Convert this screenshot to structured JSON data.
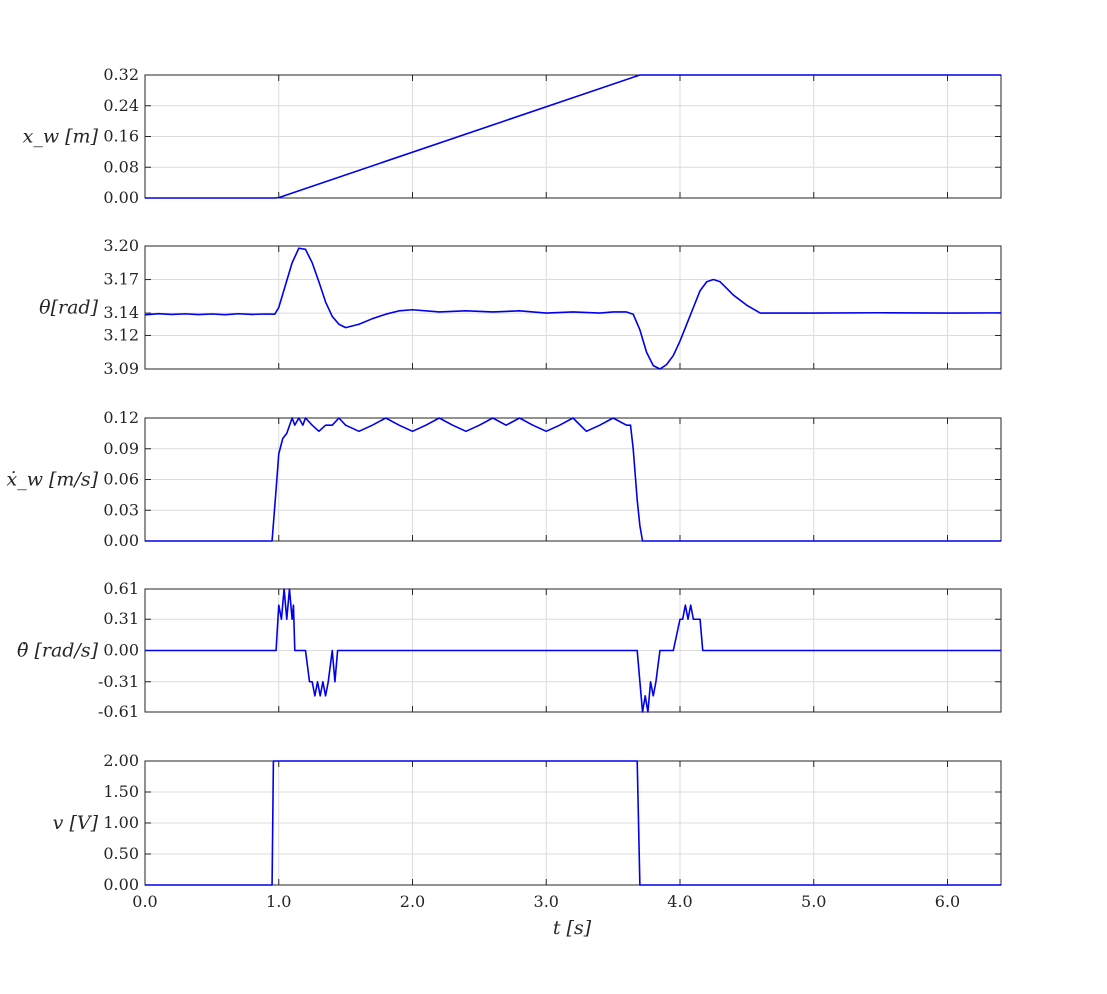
{
  "figure": {
    "xlabel": "t [s]"
  },
  "chart_data": [
    {
      "type": "line",
      "ylabel": "x_w [m]",
      "xlim": [
        0,
        6.4
      ],
      "ylim": [
        0,
        0.32
      ],
      "xticks": [
        0,
        1,
        2,
        3,
        4,
        5,
        6
      ],
      "yticks": [
        "0.00",
        "0.08",
        "0.16",
        "0.24",
        "0.32"
      ],
      "grid": true,
      "series": [
        {
          "color": "#0000ee",
          "x": [
            0,
            0.97,
            1.0,
            3.7,
            6.4
          ],
          "y": [
            0,
            0,
            0.001,
            0.32,
            0.32
          ]
        }
      ]
    },
    {
      "type": "line",
      "ylabel": "θ[rad]",
      "xlim": [
        0,
        6.4
      ],
      "ylim": [
        3.09,
        3.2
      ],
      "xticks": [
        0,
        1,
        2,
        3,
        4,
        5,
        6
      ],
      "yticks": [
        "3.09",
        "3.12",
        "3.14",
        "3.17",
        "3.20"
      ],
      "grid": true,
      "series": [
        {
          "color": "#0000ee",
          "x": [
            0,
            0.1,
            0.2,
            0.3,
            0.4,
            0.5,
            0.6,
            0.7,
            0.8,
            0.9,
            0.97,
            1.0,
            1.05,
            1.1,
            1.15,
            1.2,
            1.25,
            1.3,
            1.35,
            1.4,
            1.45,
            1.5,
            1.6,
            1.7,
            1.8,
            1.9,
            2.0,
            2.2,
            2.4,
            2.6,
            2.8,
            3.0,
            3.2,
            3.4,
            3.5,
            3.6,
            3.65,
            3.7,
            3.75,
            3.8,
            3.85,
            3.9,
            3.95,
            4.0,
            4.05,
            4.1,
            4.15,
            4.2,
            4.25,
            4.3,
            4.35,
            4.4,
            4.5,
            4.6,
            5.0,
            5.5,
            6.0,
            6.4
          ],
          "y": [
            3.1385,
            3.1395,
            3.1388,
            3.1393,
            3.1387,
            3.1392,
            3.1386,
            3.1394,
            3.1388,
            3.1392,
            3.139,
            3.145,
            3.165,
            3.185,
            3.198,
            3.197,
            3.185,
            3.168,
            3.15,
            3.137,
            3.13,
            3.127,
            3.13,
            3.135,
            3.139,
            3.142,
            3.143,
            3.141,
            3.142,
            3.141,
            3.142,
            3.14,
            3.141,
            3.14,
            3.141,
            3.141,
            3.139,
            3.125,
            3.105,
            3.093,
            3.09,
            3.094,
            3.102,
            3.115,
            3.13,
            3.145,
            3.16,
            3.168,
            3.17,
            3.168,
            3.162,
            3.156,
            3.147,
            3.14,
            3.14,
            3.1403,
            3.14,
            3.1402
          ]
        }
      ]
    },
    {
      "type": "line",
      "ylabel": "ẋ_w [m/s]",
      "xlim": [
        0,
        6.4
      ],
      "ylim": [
        0,
        0.12
      ],
      "xticks": [
        0,
        1,
        2,
        3,
        4,
        5,
        6
      ],
      "yticks": [
        "0.00",
        "0.03",
        "0.06",
        "0.09",
        "0.12"
      ],
      "grid": true,
      "series": [
        {
          "color": "#0000ee",
          "x": [
            0,
            0.95,
            0.98,
            1.0,
            1.03,
            1.06,
            1.1,
            1.12,
            1.15,
            1.18,
            1.2,
            1.25,
            1.3,
            1.35,
            1.4,
            1.45,
            1.5,
            1.6,
            1.7,
            1.8,
            1.9,
            2.0,
            2.1,
            2.2,
            2.3,
            2.4,
            2.5,
            2.6,
            2.7,
            2.8,
            2.9,
            3.0,
            3.1,
            3.2,
            3.3,
            3.4,
            3.5,
            3.6,
            3.63,
            3.65,
            3.68,
            3.7,
            3.72,
            3.75,
            4.0,
            5.0,
            6.0,
            6.4
          ],
          "y": [
            0,
            0,
            0.05,
            0.085,
            0.1,
            0.105,
            0.12,
            0.113,
            0.12,
            0.113,
            0.12,
            0.113,
            0.107,
            0.113,
            0.113,
            0.12,
            0.113,
            0.107,
            0.113,
            0.12,
            0.113,
            0.107,
            0.113,
            0.12,
            0.113,
            0.107,
            0.113,
            0.12,
            0.113,
            0.12,
            0.113,
            0.107,
            0.113,
            0.12,
            0.107,
            0.113,
            0.12,
            0.113,
            0.113,
            0.09,
            0.04,
            0.015,
            0.0,
            0.0,
            0,
            0,
            0,
            0
          ]
        }
      ]
    },
    {
      "type": "line",
      "ylabel": "θ̇ [rad/s]",
      "xlim": [
        0,
        6.4
      ],
      "ylim": [
        -0.61,
        0.61
      ],
      "xticks": [
        0,
        1,
        2,
        3,
        4,
        5,
        6
      ],
      "yticks": [
        "-0.61",
        "-0.31",
        "0.00",
        "0.31",
        "0.61"
      ],
      "grid": true,
      "series": [
        {
          "color": "#0000ee",
          "x": [
            0,
            0.98,
            1.0,
            1.02,
            1.04,
            1.06,
            1.08,
            1.1,
            1.11,
            1.12,
            1.15,
            1.2,
            1.23,
            1.25,
            1.27,
            1.29,
            1.31,
            1.33,
            1.35,
            1.37,
            1.4,
            1.42,
            1.44,
            1.5,
            2.0,
            3.0,
            3.68,
            3.7,
            3.72,
            3.74,
            3.76,
            3.78,
            3.8,
            3.82,
            3.85,
            3.9,
            3.95,
            4.0,
            4.02,
            4.04,
            4.06,
            4.08,
            4.1,
            4.15,
            4.17,
            4.2,
            4.5,
            5.0,
            6.0,
            6.4
          ],
          "y": [
            0,
            0,
            0.45,
            0.31,
            0.61,
            0.31,
            0.61,
            0.31,
            0.45,
            0,
            0,
            0,
            -0.31,
            -0.31,
            -0.45,
            -0.31,
            -0.45,
            -0.31,
            -0.45,
            -0.31,
            0,
            -0.31,
            0,
            0,
            0,
            0,
            0,
            -0.31,
            -0.61,
            -0.45,
            -0.61,
            -0.31,
            -0.45,
            -0.31,
            0,
            0,
            0,
            0.31,
            0.31,
            0.45,
            0.31,
            0.45,
            0.31,
            0.31,
            0,
            0,
            0,
            0,
            0,
            0
          ]
        }
      ]
    },
    {
      "type": "line",
      "ylabel": "v [V]",
      "xlim": [
        0,
        6.4
      ],
      "ylim": [
        0,
        2
      ],
      "xticks": [
        "0.0",
        "1.0",
        "2.0",
        "3.0",
        "4.0",
        "5.0",
        "6.0"
      ],
      "yticks": [
        "0.00",
        "0.50",
        "1.00",
        "1.50",
        "2.00"
      ],
      "grid": true,
      "series": [
        {
          "color": "#0000ee",
          "x": [
            0,
            0.95,
            0.96,
            3.68,
            3.7,
            6.4
          ],
          "y": [
            0,
            0,
            2,
            2,
            0,
            0
          ]
        }
      ]
    }
  ]
}
